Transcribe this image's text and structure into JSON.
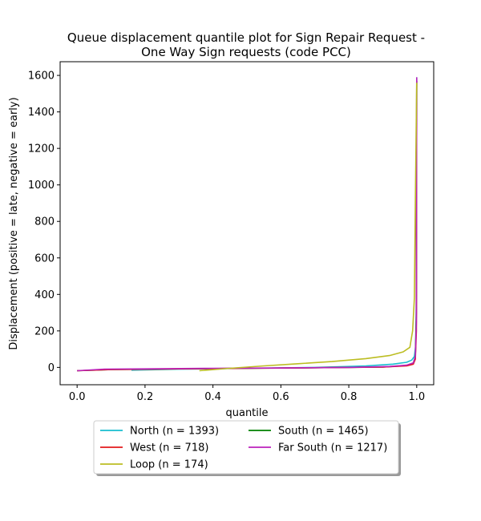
{
  "chart_data": {
    "type": "line",
    "title_lines": [
      "Queue displacement quantile plot for Sign Repair Request -",
      "One Way Sign  requests (code PCC)"
    ],
    "xlabel": "quantile",
    "ylabel": "Displacement (positive = late, negative = early)",
    "xlim": [
      -0.05,
      1.05
    ],
    "ylim": [
      -95,
      1675
    ],
    "xticks": [
      0.0,
      0.2,
      0.4,
      0.6,
      0.8,
      1.0
    ],
    "xtick_labels": [
      "0.0",
      "0.2",
      "0.4",
      "0.6",
      "0.8",
      "1.0"
    ],
    "yticks": [
      0,
      200,
      400,
      600,
      800,
      1000,
      1200,
      1400,
      1600
    ],
    "ytick_labels": [
      "0",
      "200",
      "400",
      "600",
      "800",
      "1000",
      "1200",
      "1400",
      "1600"
    ],
    "grid": false,
    "legend_position": "below-center",
    "series": [
      {
        "name": "North (n = 1393)",
        "color": "#17becf",
        "x": [
          0.16,
          0.3,
          0.5,
          0.7,
          0.85,
          0.93,
          0.97,
          0.985,
          0.993,
          0.997,
          0.999,
          1.0
        ],
        "y": [
          -15,
          -10,
          -5,
          0,
          8,
          18,
          28,
          40,
          60,
          120,
          400,
          1590
        ]
      },
      {
        "name": "South (n = 1465)",
        "color": "#008000",
        "x": [
          0.0,
          0.1,
          0.3,
          0.5,
          0.7,
          0.9,
          0.97,
          0.99,
          0.996,
          0.999,
          1.0
        ],
        "y": [
          -18,
          -12,
          -8,
          -5,
          -2,
          2,
          10,
          25,
          60,
          300,
          1570
        ]
      },
      {
        "name": "West (n = 718)",
        "color": "#e31a1c",
        "x": [
          0.0,
          0.1,
          0.3,
          0.5,
          0.7,
          0.9,
          0.97,
          0.99,
          0.996,
          0.999,
          1.0
        ],
        "y": [
          -18,
          -12,
          -8,
          -5,
          -2,
          2,
          8,
          18,
          45,
          200,
          1570
        ]
      },
      {
        "name": "Far South (n = 1217)",
        "color": "#bb22bb",
        "x": [
          0.0,
          0.08,
          0.2,
          0.4,
          0.6,
          0.8,
          0.92,
          0.97,
          0.99,
          0.996,
          0.999,
          1.0
        ],
        "y": [
          -18,
          -10,
          -8,
          -5,
          -3,
          0,
          5,
          12,
          25,
          60,
          250,
          1590
        ]
      },
      {
        "name": "Loop (n = 174)",
        "color": "#bcbd22",
        "x": [
          0.36,
          0.45,
          0.55,
          0.65,
          0.75,
          0.85,
          0.92,
          0.96,
          0.98,
          0.988,
          0.993,
          0.996,
          1.0
        ],
        "y": [
          -18,
          -5,
          8,
          20,
          32,
          48,
          65,
          85,
          110,
          200,
          380,
          900,
          1560
        ]
      }
    ]
  }
}
